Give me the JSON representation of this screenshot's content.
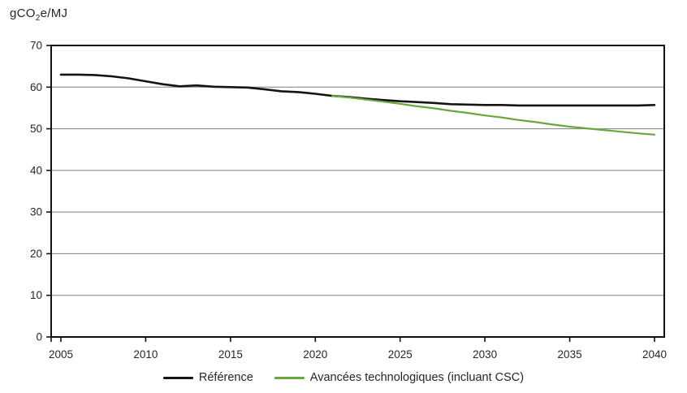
{
  "title": {
    "prefix": "gCO",
    "subscript": "2",
    "suffix": "e/MJ"
  },
  "legend": [
    {
      "label": "Référence",
      "color": "#141414"
    },
    {
      "label": "Avancées technologiques (incluant CSC)",
      "color": "#68a73d"
    }
  ],
  "chart_data": {
    "type": "line",
    "title": "gCO2e/MJ",
    "xlabel": "",
    "ylabel": "gCO2e/MJ",
    "xlim": [
      2005,
      2040
    ],
    "ylim": [
      0,
      70
    ],
    "xticks": [
      2005,
      2010,
      2015,
      2020,
      2025,
      2030,
      2035,
      2040
    ],
    "yticks": [
      0,
      10,
      20,
      30,
      40,
      50,
      60,
      70
    ],
    "grid": "horizontal",
    "grid_color": "#7f7f7f",
    "axis_color": "#111111",
    "tick_label_color": "#262626",
    "legend_position": "bottom",
    "series": [
      {
        "name": "Référence",
        "color": "#141414",
        "width": 2.6,
        "x": [
          2005,
          2006,
          2007,
          2008,
          2009,
          2010,
          2011,
          2012,
          2013,
          2014,
          2015,
          2016,
          2017,
          2018,
          2019,
          2020,
          2021,
          2022,
          2023,
          2024,
          2025,
          2026,
          2027,
          2028,
          2029,
          2030,
          2031,
          2032,
          2033,
          2034,
          2035,
          2036,
          2037,
          2038,
          2039,
          2040
        ],
        "values": [
          63.0,
          63.0,
          62.9,
          62.6,
          62.1,
          61.4,
          60.7,
          60.2,
          60.4,
          60.1,
          60.0,
          59.9,
          59.5,
          59.0,
          58.8,
          58.4,
          57.9,
          57.6,
          57.2,
          56.9,
          56.6,
          56.4,
          56.2,
          55.9,
          55.8,
          55.7,
          55.7,
          55.6,
          55.6,
          55.6,
          55.6,
          55.6,
          55.6,
          55.6,
          55.6,
          55.7
        ]
      },
      {
        "name": "Avancées technologiques (incluant CSC)",
        "color": "#68a73d",
        "width": 2.2,
        "x": [
          2021,
          2022,
          2023,
          2024,
          2025,
          2026,
          2027,
          2028,
          2029,
          2030,
          2031,
          2032,
          2033,
          2034,
          2035,
          2036,
          2037,
          2038,
          2039,
          2040
        ],
        "values": [
          57.9,
          57.5,
          57.0,
          56.5,
          56.0,
          55.4,
          54.9,
          54.3,
          53.8,
          53.2,
          52.7,
          52.1,
          51.6,
          51.0,
          50.5,
          50.1,
          49.7,
          49.3,
          48.9,
          48.6
        ]
      }
    ]
  }
}
